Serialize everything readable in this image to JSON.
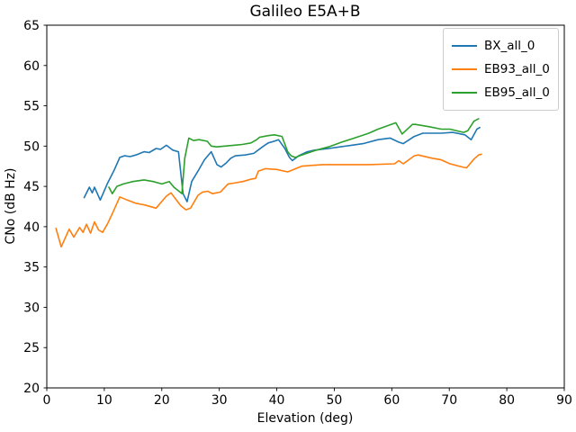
{
  "title": "Galileo E5A+B",
  "chart_data": {
    "type": "line",
    "title": "Galileo E5A+B",
    "xlabel": "Elevation (deg)",
    "ylabel": "CNo (dB Hz)",
    "xlim": [
      0,
      90
    ],
    "ylim": [
      20,
      65
    ],
    "xticks": [
      0,
      10,
      20,
      30,
      40,
      50,
      60,
      70,
      80,
      90
    ],
    "yticks": [
      20,
      25,
      30,
      35,
      40,
      45,
      50,
      55,
      60,
      65
    ],
    "grid": false,
    "legend_position": "upper right",
    "series": [
      {
        "name": "BX_all_0",
        "color": "#1f77b4",
        "points": [
          [
            6.5,
            43.6
          ],
          [
            7.4,
            44.9
          ],
          [
            7.9,
            44.2
          ],
          [
            8.3,
            44.9
          ],
          [
            9.3,
            43.3
          ],
          [
            10.5,
            45.3
          ],
          [
            11.7,
            47.0
          ],
          [
            12.7,
            48.6
          ],
          [
            13.5,
            48.8
          ],
          [
            14.5,
            48.7
          ],
          [
            15.5,
            48.9
          ],
          [
            16.9,
            49.3
          ],
          [
            17.8,
            49.2
          ],
          [
            19.0,
            49.7
          ],
          [
            19.8,
            49.6
          ],
          [
            20.8,
            50.1
          ],
          [
            21.9,
            49.5
          ],
          [
            22.9,
            49.3
          ],
          [
            23.7,
            44.1
          ],
          [
            24.4,
            43.1
          ],
          [
            25.2,
            45.6
          ],
          [
            26.3,
            46.9
          ],
          [
            27.4,
            48.3
          ],
          [
            28.6,
            49.3
          ],
          [
            29.6,
            47.7
          ],
          [
            30.3,
            47.4
          ],
          [
            31.2,
            47.9
          ],
          [
            32.0,
            48.5
          ],
          [
            32.8,
            48.8
          ],
          [
            34.5,
            48.9
          ],
          [
            36.0,
            49.1
          ],
          [
            37.5,
            49.9
          ],
          [
            38.5,
            50.4
          ],
          [
            39.5,
            50.6
          ],
          [
            40.3,
            50.8
          ],
          [
            41.4,
            49.7
          ],
          [
            42.2,
            48.6
          ],
          [
            42.7,
            48.2
          ],
          [
            43.8,
            48.8
          ],
          [
            45.3,
            49.3
          ],
          [
            46.6,
            49.5
          ],
          [
            49.0,
            49.7
          ],
          [
            51.0,
            49.9
          ],
          [
            53.0,
            50.1
          ],
          [
            55.0,
            50.3
          ],
          [
            57.6,
            50.8
          ],
          [
            59.7,
            51.0
          ],
          [
            61.2,
            50.5
          ],
          [
            62.0,
            50.3
          ],
          [
            63.9,
            51.2
          ],
          [
            65.4,
            51.6
          ],
          [
            68.6,
            51.6
          ],
          [
            70.6,
            51.7
          ],
          [
            72.7,
            51.4
          ],
          [
            73.8,
            50.8
          ],
          [
            74.8,
            52.1
          ],
          [
            75.3,
            52.3
          ]
        ]
      },
      {
        "name": "EB93_all_0",
        "color": "#ff7f0e",
        "points": [
          [
            1.6,
            39.8
          ],
          [
            2.5,
            37.5
          ],
          [
            3.9,
            39.7
          ],
          [
            4.7,
            38.7
          ],
          [
            5.7,
            39.9
          ],
          [
            6.3,
            39.3
          ],
          [
            6.9,
            40.3
          ],
          [
            7.6,
            39.2
          ],
          [
            8.3,
            40.6
          ],
          [
            9.0,
            39.6
          ],
          [
            9.7,
            39.3
          ],
          [
            10.6,
            40.4
          ],
          [
            11.5,
            41.8
          ],
          [
            12.7,
            43.7
          ],
          [
            14.0,
            43.3
          ],
          [
            15.5,
            42.9
          ],
          [
            17.0,
            42.7
          ],
          [
            19.0,
            42.3
          ],
          [
            20.8,
            43.8
          ],
          [
            21.6,
            44.2
          ],
          [
            23.3,
            42.6
          ],
          [
            24.2,
            42.1
          ],
          [
            25.0,
            42.3
          ],
          [
            26.3,
            43.9
          ],
          [
            27.1,
            44.3
          ],
          [
            28.0,
            44.4
          ],
          [
            28.8,
            44.1
          ],
          [
            30.2,
            44.3
          ],
          [
            31.5,
            45.3
          ],
          [
            32.5,
            45.4
          ],
          [
            34.1,
            45.6
          ],
          [
            35.5,
            45.9
          ],
          [
            36.3,
            46.0
          ],
          [
            36.8,
            46.9
          ],
          [
            38.0,
            47.2
          ],
          [
            40.0,
            47.1
          ],
          [
            41.9,
            46.8
          ],
          [
            44.3,
            47.5
          ],
          [
            46.0,
            47.6
          ],
          [
            48.0,
            47.7
          ],
          [
            52.0,
            47.7
          ],
          [
            56.0,
            47.7
          ],
          [
            60.5,
            47.8
          ],
          [
            61.2,
            48.2
          ],
          [
            62.0,
            47.8
          ],
          [
            63.9,
            48.8
          ],
          [
            64.6,
            48.9
          ],
          [
            67.0,
            48.5
          ],
          [
            68.6,
            48.3
          ],
          [
            70.1,
            47.8
          ],
          [
            72.3,
            47.4
          ],
          [
            73.0,
            47.3
          ],
          [
            74.3,
            48.4
          ],
          [
            75.1,
            48.9
          ],
          [
            75.6,
            49.0
          ]
        ]
      },
      {
        "name": "EB95_all_0",
        "color": "#2ca02c",
        "points": [
          [
            10.8,
            44.9
          ],
          [
            11.4,
            44.1
          ],
          [
            12.2,
            45.0
          ],
          [
            13.3,
            45.3
          ],
          [
            15.0,
            45.6
          ],
          [
            16.9,
            45.8
          ],
          [
            18.5,
            45.6
          ],
          [
            20.0,
            45.3
          ],
          [
            21.3,
            45.6
          ],
          [
            22.1,
            44.9
          ],
          [
            23.0,
            44.4
          ],
          [
            23.5,
            44.1
          ],
          [
            24.0,
            48.5
          ],
          [
            24.7,
            51.0
          ],
          [
            25.5,
            50.7
          ],
          [
            26.5,
            50.8
          ],
          [
            27.9,
            50.6
          ],
          [
            28.6,
            50.0
          ],
          [
            29.5,
            49.9
          ],
          [
            31.0,
            50.0
          ],
          [
            32.5,
            50.1
          ],
          [
            34.0,
            50.2
          ],
          [
            35.5,
            50.4
          ],
          [
            36.5,
            50.8
          ],
          [
            37.0,
            51.1
          ],
          [
            38.5,
            51.3
          ],
          [
            39.6,
            51.4
          ],
          [
            40.9,
            51.2
          ],
          [
            41.9,
            49.3
          ],
          [
            42.5,
            48.8
          ],
          [
            43.2,
            48.6
          ],
          [
            44.8,
            49.0
          ],
          [
            46.9,
            49.5
          ],
          [
            49.0,
            49.9
          ],
          [
            51.3,
            50.5
          ],
          [
            53.5,
            51.0
          ],
          [
            56.0,
            51.6
          ],
          [
            57.6,
            52.1
          ],
          [
            59.9,
            52.7
          ],
          [
            60.7,
            52.9
          ],
          [
            61.8,
            51.5
          ],
          [
            63.6,
            52.7
          ],
          [
            64.1,
            52.7
          ],
          [
            66.5,
            52.4
          ],
          [
            68.6,
            52.1
          ],
          [
            70.1,
            52.1
          ],
          [
            72.5,
            51.7
          ],
          [
            73.2,
            51.9
          ],
          [
            74.3,
            53.1
          ],
          [
            75.1,
            53.4
          ]
        ]
      }
    ]
  }
}
